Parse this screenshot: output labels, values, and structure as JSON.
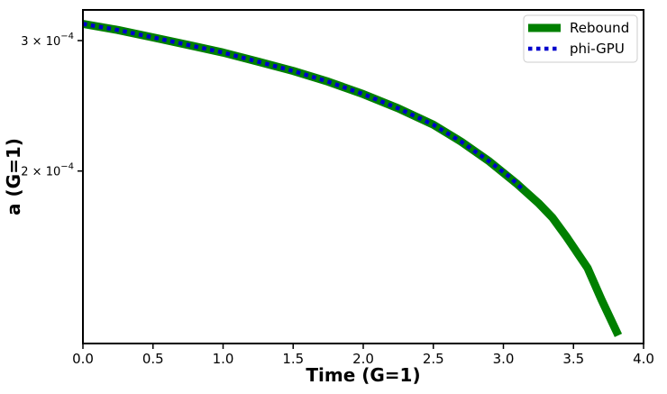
{
  "chart_data": {
    "type": "line",
    "xlabel": "Time (G=1)",
    "ylabel": "a (G=1)",
    "xlim": [
      0.0,
      4.0
    ],
    "ylim": [
      0.000117,
      0.00033
    ],
    "y_scale": "log",
    "x_ticks": [
      0.0,
      0.5,
      1.0,
      1.5,
      2.0,
      2.5,
      3.0,
      3.5,
      4.0
    ],
    "x_tick_labels": [
      "0.0",
      "0.5",
      "1.0",
      "1.5",
      "2.0",
      "2.5",
      "3.0",
      "3.5",
      "4.0"
    ],
    "y_ticks": [
      {
        "value": 0.0002,
        "mantissa": "2",
        "base": "10",
        "exp": "−4"
      },
      {
        "value": 0.0003,
        "mantissa": "3",
        "base": "10",
        "exp": "−4"
      }
    ],
    "legend_position": "upper right",
    "series": [
      {
        "name": "Rebound",
        "color": "#008000",
        "style": "solid",
        "x": [
          0.0,
          0.25,
          0.5,
          0.75,
          1.0,
          1.25,
          1.5,
          1.75,
          2.0,
          2.25,
          2.5,
          2.7,
          2.9,
          3.1,
          3.25,
          3.35,
          3.45,
          3.6,
          3.7,
          3.82
        ],
        "y": [
          0.000316,
          0.00031,
          0.000303,
          0.000296,
          0.000289,
          0.000281,
          0.000273,
          0.000264,
          0.000254,
          0.000243,
          0.000231,
          0.000219,
          0.000206,
          0.000192,
          0.000181,
          0.000173,
          0.000163,
          0.000148,
          0.000134,
          0.00012
        ]
      },
      {
        "name": "phi-GPU",
        "color": "#0000cc",
        "style": "dotted",
        "x": [
          0.0,
          0.25,
          0.5,
          0.75,
          1.0,
          1.25,
          1.5,
          1.75,
          2.0,
          2.25,
          2.5,
          2.7,
          2.9,
          3.05,
          3.15
        ],
        "y": [
          0.000316,
          0.00031,
          0.000303,
          0.000296,
          0.000289,
          0.000281,
          0.000273,
          0.000264,
          0.000254,
          0.000243,
          0.000231,
          0.000219,
          0.000206,
          0.000196,
          0.000188
        ]
      }
    ]
  }
}
